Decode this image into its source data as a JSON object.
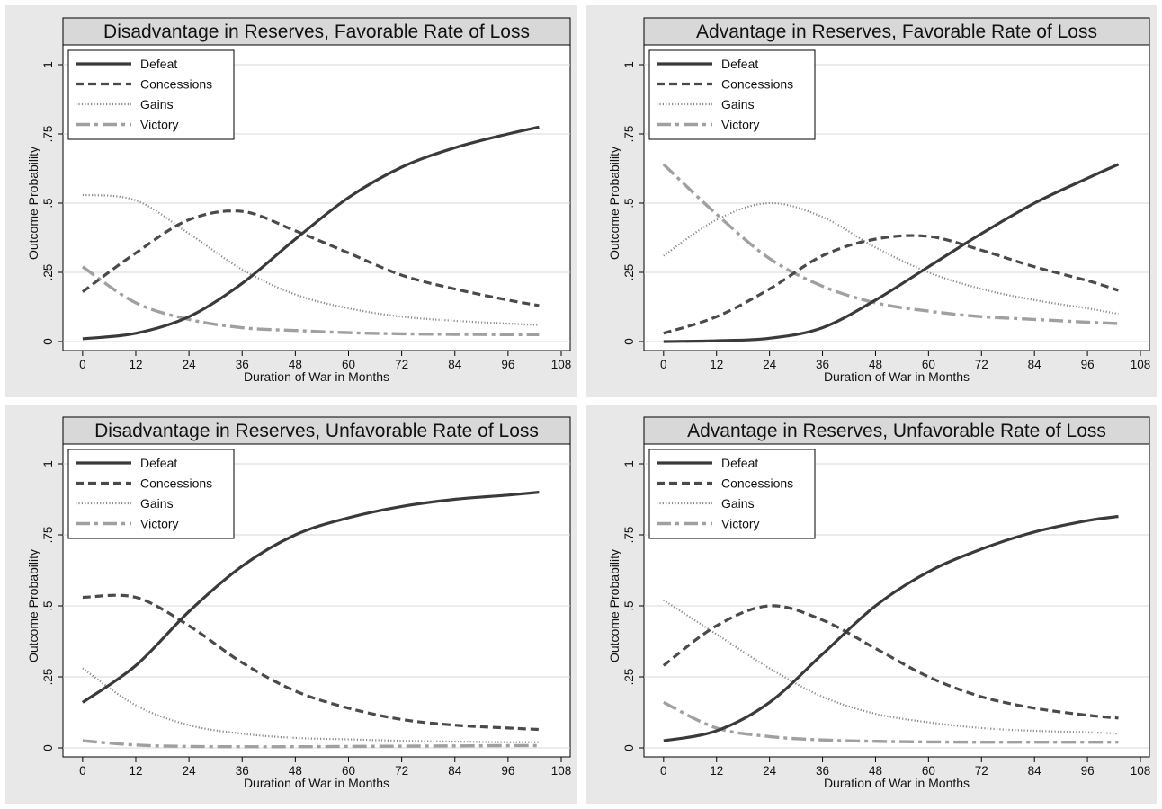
{
  "chart_data": [
    {
      "type": "line",
      "title": "Disadvantage in Reserves, Favorable Rate of Loss",
      "xlabel": "Duration of War in Months",
      "ylabel": "Outcome Probability",
      "xlim": [
        -2,
        108
      ],
      "ylim": [
        0,
        1
      ],
      "xticks": [
        "0",
        "12",
        "24",
        "36",
        "48",
        "60",
        "72",
        "84",
        "96",
        "108"
      ],
      "yticks": [
        "0",
        ".25",
        ".5",
        ".75",
        "1"
      ],
      "grid": true,
      "legend": "top-left",
      "x": [
        0,
        12,
        24,
        36,
        48,
        60,
        72,
        84,
        96,
        103
      ],
      "series": [
        {
          "name": "Defeat",
          "style": "solid",
          "color": "#3a3a3a",
          "values": [
            0.01,
            0.03,
            0.09,
            0.21,
            0.37,
            0.52,
            0.63,
            0.7,
            0.75,
            0.775
          ]
        },
        {
          "name": "Concessions",
          "style": "dashed",
          "color": "#4a4a4a",
          "values": [
            0.18,
            0.32,
            0.44,
            0.47,
            0.4,
            0.32,
            0.24,
            0.19,
            0.15,
            0.13
          ]
        },
        {
          "name": "Gains",
          "style": "dotted",
          "color": "#8a8a8a",
          "values": [
            0.53,
            0.51,
            0.39,
            0.26,
            0.17,
            0.12,
            0.09,
            0.075,
            0.065,
            0.06
          ]
        },
        {
          "name": "Victory",
          "style": "dashdot",
          "color": "#a0a0a0",
          "values": [
            0.27,
            0.14,
            0.08,
            0.05,
            0.04,
            0.032,
            0.028,
            0.026,
            0.025,
            0.025
          ]
        }
      ]
    },
    {
      "type": "line",
      "title": "Advantage in Reserves, Favorable Rate of Loss",
      "xlabel": "Duration of War in Months",
      "ylabel": "Outcome Probability",
      "xlim": [
        -2,
        108
      ],
      "ylim": [
        0,
        1
      ],
      "xticks": [
        "0",
        "12",
        "24",
        "36",
        "48",
        "60",
        "72",
        "84",
        "96",
        "108"
      ],
      "yticks": [
        "0",
        ".25",
        ".5",
        ".75",
        "1"
      ],
      "grid": true,
      "legend": "top-left",
      "x": [
        0,
        12,
        24,
        36,
        48,
        60,
        72,
        84,
        96,
        103
      ],
      "series": [
        {
          "name": "Defeat",
          "style": "solid",
          "color": "#3a3a3a",
          "values": [
            0.0,
            0.003,
            0.012,
            0.05,
            0.15,
            0.27,
            0.39,
            0.5,
            0.59,
            0.64
          ]
        },
        {
          "name": "Concessions",
          "style": "dashed",
          "color": "#4a4a4a",
          "values": [
            0.03,
            0.09,
            0.19,
            0.31,
            0.37,
            0.38,
            0.33,
            0.27,
            0.22,
            0.185
          ]
        },
        {
          "name": "Gains",
          "style": "dotted",
          "color": "#8a8a8a",
          "values": [
            0.31,
            0.44,
            0.5,
            0.45,
            0.34,
            0.25,
            0.19,
            0.15,
            0.12,
            0.1
          ]
        },
        {
          "name": "Victory",
          "style": "dashdot",
          "color": "#a0a0a0",
          "values": [
            0.64,
            0.46,
            0.3,
            0.2,
            0.14,
            0.11,
            0.09,
            0.08,
            0.07,
            0.065
          ]
        }
      ]
    },
    {
      "type": "line",
      "title": "Disadvantage in Reserves, Unfavorable Rate of Loss",
      "xlabel": "Duration of War in Months",
      "ylabel": "Outcome Probability",
      "xlim": [
        -2,
        108
      ],
      "ylim": [
        0,
        1
      ],
      "xticks": [
        "0",
        "12",
        "24",
        "36",
        "48",
        "60",
        "72",
        "84",
        "96",
        "108"
      ],
      "yticks": [
        "0",
        ".25",
        ".5",
        ".75",
        "1"
      ],
      "grid": true,
      "legend": "top-left",
      "x": [
        0,
        12,
        24,
        36,
        48,
        60,
        72,
        84,
        96,
        103
      ],
      "series": [
        {
          "name": "Defeat",
          "style": "solid",
          "color": "#3a3a3a",
          "values": [
            0.16,
            0.29,
            0.48,
            0.64,
            0.75,
            0.81,
            0.85,
            0.875,
            0.89,
            0.9
          ]
        },
        {
          "name": "Concessions",
          "style": "dashed",
          "color": "#4a4a4a",
          "values": [
            0.53,
            0.53,
            0.43,
            0.3,
            0.2,
            0.14,
            0.1,
            0.08,
            0.07,
            0.065
          ]
        },
        {
          "name": "Gains",
          "style": "dotted",
          "color": "#8a8a8a",
          "values": [
            0.28,
            0.15,
            0.08,
            0.05,
            0.035,
            0.03,
            0.025,
            0.022,
            0.02,
            0.02
          ]
        },
        {
          "name": "Victory",
          "style": "dashdot",
          "color": "#a0a0a0",
          "values": [
            0.025,
            0.01,
            0.005,
            0.004,
            0.004,
            0.005,
            0.006,
            0.007,
            0.008,
            0.008
          ]
        }
      ]
    },
    {
      "type": "line",
      "title": "Advantage in Reserves, Unfavorable Rate of Loss",
      "xlabel": "Duration of War in Months",
      "ylabel": "Outcome Probability",
      "xlim": [
        -2,
        108
      ],
      "ylim": [
        0,
        1
      ],
      "xticks": [
        "0",
        "12",
        "24",
        "36",
        "48",
        "60",
        "72",
        "84",
        "96",
        "108"
      ],
      "yticks": [
        "0",
        ".25",
        ".5",
        ".75",
        "1"
      ],
      "grid": true,
      "legend": "top-left",
      "x": [
        0,
        12,
        24,
        36,
        48,
        60,
        72,
        84,
        96,
        103
      ],
      "series": [
        {
          "name": "Defeat",
          "style": "solid",
          "color": "#3a3a3a",
          "values": [
            0.025,
            0.06,
            0.16,
            0.33,
            0.5,
            0.62,
            0.7,
            0.76,
            0.8,
            0.815
          ]
        },
        {
          "name": "Concessions",
          "style": "dashed",
          "color": "#4a4a4a",
          "values": [
            0.29,
            0.43,
            0.5,
            0.45,
            0.35,
            0.25,
            0.18,
            0.14,
            0.115,
            0.105
          ]
        },
        {
          "name": "Gains",
          "style": "dotted",
          "color": "#8a8a8a",
          "values": [
            0.52,
            0.4,
            0.28,
            0.18,
            0.12,
            0.09,
            0.07,
            0.06,
            0.055,
            0.05
          ]
        },
        {
          "name": "Victory",
          "style": "dashdot",
          "color": "#a0a0a0",
          "values": [
            0.16,
            0.07,
            0.04,
            0.028,
            0.023,
            0.021,
            0.02,
            0.02,
            0.02,
            0.02
          ]
        }
      ]
    }
  ]
}
